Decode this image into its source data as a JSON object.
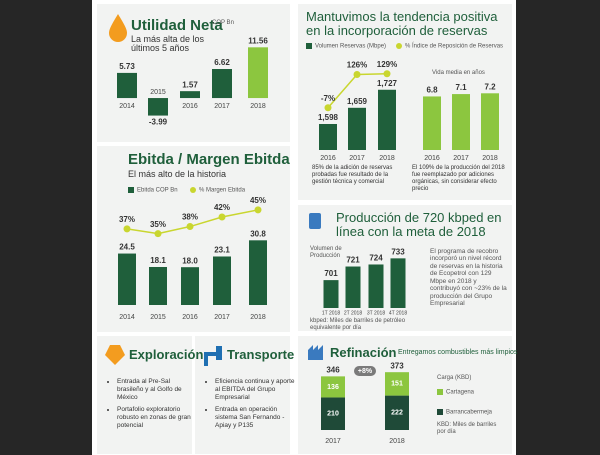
{
  "chart_data": [
    {
      "type": "bar",
      "title": "Utilidad Neta",
      "unit": "COP Bn",
      "subtitle": "La más alta de los últimos 5 años",
      "categories": [
        "2014",
        "2015",
        "2016",
        "2017",
        "2018"
      ],
      "values": [
        5.73,
        -3.99,
        1.57,
        6.62,
        11.56
      ],
      "colors": [
        "#1f5f3b",
        "#1f5f3b",
        "#1f5f3b",
        "#1f5f3b",
        "#8cc63f"
      ],
      "ylim": [
        -5,
        13
      ]
    },
    {
      "type": "bar-line",
      "title": "Ebitda / Margen Ebitda",
      "subtitle": "El más alto de la historia",
      "categories": [
        "2014",
        "2015",
        "2016",
        "2017",
        "2018"
      ],
      "series": [
        {
          "name": "Ebitda COP Bn",
          "color": "#1f5f3b",
          "values": [
            24.5,
            18.1,
            18.0,
            23.1,
            30.8
          ],
          "value_labels": [
            "24.5",
            "18.1",
            "18.0",
            "23.1",
            "30.8"
          ]
        },
        {
          "name": "% Margen Ebitda",
          "color": "#c9d62f",
          "axis": "y2",
          "values": [
            37,
            35,
            38,
            42,
            45
          ],
          "value_labels": [
            "37%",
            "35%",
            "38%",
            "42%",
            "45%"
          ]
        }
      ],
      "ylim": [
        0,
        40
      ],
      "y2lim": [
        5,
        50
      ]
    },
    {
      "type": "bar-line",
      "title": "Mantuvimos la tendencia positiva en la incorporación de reservas",
      "categories": [
        "2016",
        "2017",
        "2018"
      ],
      "series": [
        {
          "name": "Volumen Reservas (Mbpe)",
          "color": "#1f5f3b",
          "values": [
            1598,
            1659,
            1727
          ],
          "value_labels": [
            "1,598",
            "1,659",
            "1,727"
          ]
        },
        {
          "name": "% Índice de Reposición de Reservas",
          "color": "#c9d62f",
          "axis": "y2",
          "values": [
            -7,
            126,
            129
          ],
          "value_labels": [
            "-7%",
            "126%",
            "129%"
          ]
        }
      ],
      "ylim": [
        1500,
        1760
      ],
      "y2lim": [
        -100,
        200
      ],
      "notes": [
        "85% de la adición de reservas probadas fue resultado de la gestión técnica y comercial",
        "El 109% de la producción del 2018 fue reemplazado por adiciones orgánicas, sin considerar efecto precio"
      ]
    },
    {
      "type": "bar",
      "title": "Vida media en años",
      "categories": [
        "2016",
        "2017",
        "2018"
      ],
      "values": [
        6.8,
        7.1,
        7.2
      ],
      "color": "#8cc63f",
      "ylim": [
        0,
        8
      ]
    },
    {
      "type": "bar",
      "title": "Producción de 720 kbped en línea con la meta de 2018",
      "y_label": "Volumen de Producción",
      "categories": [
        "1T 2018",
        "2T 2018",
        "3T 2018",
        "4T 2018"
      ],
      "values": [
        701,
        721,
        724,
        733
      ],
      "color": "#1f5f3b",
      "ylim": [
        660,
        760
      ],
      "note": "kbped: Miles de barriles de petróleo equivalente por día",
      "description": "El programa de recobro incorporó un nivel récord de reservas en la historia de Ecopetrol con 129 Mbpe en 2018 y contribuyó con ~23% de la producción del Grupo Empresarial"
    },
    {
      "type": "stacked-bar",
      "title": "Refinación",
      "subtitle": "Entregamos combustibles más limpios",
      "categories": [
        "2017",
        "2018"
      ],
      "series": [
        {
          "name": "Barrancabermeja",
          "color": "#1f4a38",
          "values": [
            210,
            222
          ]
        },
        {
          "name": "Cartagena",
          "color": "#8cc63f",
          "values": [
            136,
            151
          ]
        }
      ],
      "totals": [
        346,
        373
      ],
      "annotation": "+8%",
      "legend_title": "Carga (KBD)",
      "note": "KBD: Miles de barriles por día",
      "ylim": [
        0,
        400
      ]
    }
  ],
  "sections": [
    {
      "title": "Exploración",
      "bullets": [
        "Entrada al Pre-Sal brasileño y al Golfo de México",
        "Portafolio exploratorio robusto en zonas de gran potencial"
      ]
    },
    {
      "title": "Transporte",
      "bullets": [
        "Eficiencia continua y aporte al EBITDA del Grupo Empresarial",
        "Entrada en operación sistema San Fernando - Apiay y P135"
      ]
    }
  ]
}
